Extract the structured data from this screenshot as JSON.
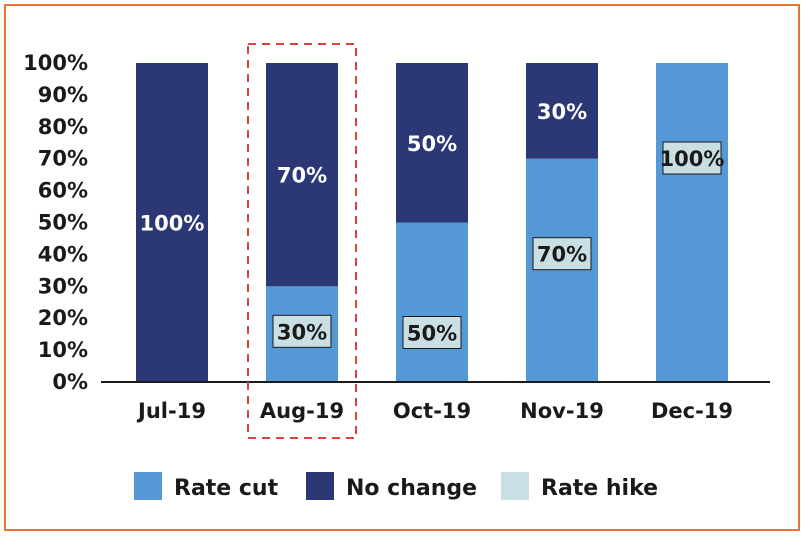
{
  "chart_data": {
    "type": "bar",
    "stacked": true,
    "categories": [
      "Jul-19",
      "Aug-19",
      "Oct-19",
      "Nov-19",
      "Dec-19"
    ],
    "series": [
      {
        "name": "Rate cut",
        "values": [
          0,
          30,
          50,
          70,
          100
        ],
        "color": "#5499d6"
      },
      {
        "name": "No change",
        "values": [
          100,
          70,
          50,
          30,
          0
        ],
        "color": "#2c3775"
      },
      {
        "name": "Rate hike",
        "values": [
          0,
          0,
          0,
          0,
          0
        ],
        "color": "#c9dfe3"
      }
    ],
    "data_labels": [
      {
        "category": "Jul-19",
        "series": "No change",
        "text": "100%"
      },
      {
        "category": "Aug-19",
        "series": "No change",
        "text": "70%"
      },
      {
        "category": "Aug-19",
        "series": "Rate cut",
        "text": "30%"
      },
      {
        "category": "Oct-19",
        "series": "No change",
        "text": "50%"
      },
      {
        "category": "Oct-19",
        "series": "Rate cut",
        "text": "50%"
      },
      {
        "category": "Nov-19",
        "series": "No change",
        "text": "30%"
      },
      {
        "category": "Nov-19",
        "series": "Rate cut",
        "text": "70%"
      },
      {
        "category": "Dec-19",
        "series": "Rate cut",
        "text": "100%"
      }
    ],
    "y_ticks": [
      "0%",
      "10%",
      "20%",
      "30%",
      "40%",
      "50%",
      "60%",
      "70%",
      "80%",
      "90%",
      "100%"
    ],
    "ylim": [
      0,
      100
    ],
    "highlighted_category": "Aug-19",
    "highlight_color": "#e0403a",
    "grid": false,
    "legend_position": "bottom",
    "label_box_color": "#c9dfe3"
  }
}
